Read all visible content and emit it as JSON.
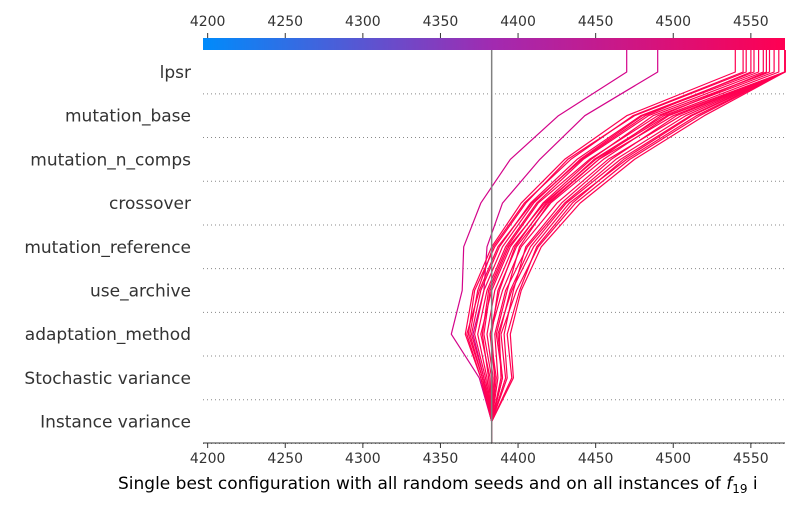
{
  "chart_data": {
    "type": "decision",
    "xlabel_main": "Single best configuration with all random seeds and on all instances of ",
    "xlabel_symbol": "f",
    "xlabel_subscript": "19",
    "xlabel_tail": " i",
    "xlim": [
      4197,
      4572
    ],
    "ticks": [
      4200,
      4250,
      4300,
      4350,
      4400,
      4450,
      4500,
      4550
    ],
    "tick_labels": [
      "4200",
      "4250",
      "4300",
      "4350",
      "4400",
      "4450",
      "4500",
      "4550"
    ],
    "features": [
      "lpsr",
      "mutation_base",
      "mutation_n_comps",
      "crossover",
      "mutation_reference",
      "use_archive",
      "adaptation_method",
      "Stochastic variance",
      "Instance variance"
    ],
    "base_value": 4383,
    "colorbar": {
      "low_color": "#008bfb",
      "mid_color": "#a22ab0",
      "high_color": "#ff0052"
    },
    "line_color": "#ff0052",
    "outlier_color": "#d4048a",
    "paths": [
      {
        "name": "path-1",
        "values": [
          4470,
          4426,
          4395,
          4376,
          4365,
          4364,
          4357,
          4375,
          4383
        ],
        "outlier": true
      },
      {
        "name": "path-2",
        "values": [
          4490,
          4443,
          4414,
          4390,
          4380,
          4378,
          4371,
          4378,
          4383
        ],
        "outlier": true
      },
      {
        "name": "path-3",
        "values": [
          4560,
          4492,
          4452,
          4420,
          4401,
          4393,
          4386,
          4390,
          4383
        ]
      },
      {
        "name": "path-4",
        "values": [
          4572,
          4512,
          4468,
          4435,
          4412,
          4401,
          4393,
          4396,
          4383
        ]
      },
      {
        "name": "path-5",
        "values": [
          4572,
          4502,
          4460,
          4428,
          4405,
          4397,
          4391,
          4393,
          4383
        ]
      },
      {
        "name": "path-6",
        "values": [
          4555,
          4480,
          4440,
          4410,
          4390,
          4378,
          4372,
          4379,
          4383
        ]
      },
      {
        "name": "path-7",
        "values": [
          4572,
          4508,
          4463,
          4430,
          4406,
          4392,
          4385,
          4387,
          4383
        ]
      },
      {
        "name": "path-8",
        "values": [
          4547,
          4475,
          4432,
          4405,
          4385,
          4372,
          4368,
          4377,
          4383
        ]
      },
      {
        "name": "path-9",
        "values": [
          4572,
          4517,
          4472,
          4437,
          4413,
          4399,
          4389,
          4392,
          4383
        ]
      },
      {
        "name": "path-10",
        "values": [
          4565,
          4490,
          4446,
          4413,
          4393,
          4381,
          4377,
          4381,
          4383
        ]
      },
      {
        "name": "path-11",
        "values": [
          4572,
          4497,
          4455,
          4421,
          4399,
          4387,
          4383,
          4385,
          4383
        ]
      },
      {
        "name": "path-12",
        "values": [
          4540,
          4470,
          4430,
          4402,
          4383,
          4371,
          4366,
          4376,
          4383
        ]
      },
      {
        "name": "path-13",
        "values": [
          4572,
          4520,
          4475,
          4440,
          4415,
          4402,
          4395,
          4397,
          4383
        ]
      },
      {
        "name": "path-14",
        "values": [
          4558,
          4484,
          4442,
          4412,
          4392,
          4380,
          4374,
          4380,
          4383
        ]
      },
      {
        "name": "path-15",
        "values": [
          4572,
          4505,
          4458,
          4425,
          4402,
          4390,
          4382,
          4386,
          4383
        ]
      },
      {
        "name": "path-16",
        "values": [
          4552,
          4479,
          4438,
          4408,
          4388,
          4376,
          4370,
          4378,
          4383
        ]
      },
      {
        "name": "path-17",
        "values": [
          4572,
          4511,
          4466,
          4431,
          4408,
          4395,
          4388,
          4389,
          4383
        ]
      },
      {
        "name": "path-18",
        "values": [
          4545,
          4474,
          4434,
          4404,
          4384,
          4374,
          4369,
          4377,
          4383
        ]
      },
      {
        "name": "path-19",
        "values": [
          4572,
          4500,
          4452,
          4419,
          4397,
          4385,
          4380,
          4384,
          4383
        ]
      },
      {
        "name": "path-20",
        "values": [
          4562,
          4487,
          4447,
          4416,
          4395,
          4383,
          4376,
          4382,
          4383
        ]
      },
      {
        "name": "path-21",
        "values": [
          4572,
          4515,
          4470,
          4433,
          4410,
          4396,
          4387,
          4390,
          4383
        ]
      },
      {
        "name": "path-22",
        "values": [
          4550,
          4482,
          4441,
          4409,
          4387,
          4375,
          4367,
          4376,
          4383
        ]
      },
      {
        "name": "path-23",
        "values": [
          4572,
          4496,
          4450,
          4417,
          4394,
          4382,
          4378,
          4383,
          4383
        ]
      },
      {
        "name": "path-24",
        "values": [
          4568,
          4494,
          4449,
          4418,
          4398,
          4388,
          4382,
          4385,
          4383
        ]
      }
    ]
  }
}
